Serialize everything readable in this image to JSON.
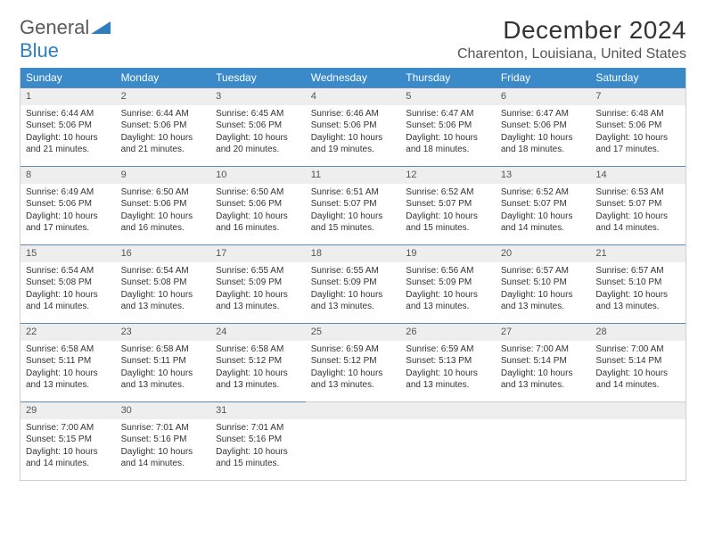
{
  "brand": {
    "part1": "General",
    "part2": "Blue"
  },
  "title": "December 2024",
  "location": "Charenton, Louisiana, United States",
  "colors": {
    "header_bg": "#3a8ac9",
    "cell_border": "#5f8bb0",
    "daynum_bg": "#eeeeee",
    "text": "#333333"
  },
  "dow": [
    "Sunday",
    "Monday",
    "Tuesday",
    "Wednesday",
    "Thursday",
    "Friday",
    "Saturday"
  ],
  "weeks": [
    [
      {
        "n": "1",
        "sunrise": "Sunrise: 6:44 AM",
        "sunset": "Sunset: 5:06 PM",
        "daylight": "Daylight: 10 hours and 21 minutes."
      },
      {
        "n": "2",
        "sunrise": "Sunrise: 6:44 AM",
        "sunset": "Sunset: 5:06 PM",
        "daylight": "Daylight: 10 hours and 21 minutes."
      },
      {
        "n": "3",
        "sunrise": "Sunrise: 6:45 AM",
        "sunset": "Sunset: 5:06 PM",
        "daylight": "Daylight: 10 hours and 20 minutes."
      },
      {
        "n": "4",
        "sunrise": "Sunrise: 6:46 AM",
        "sunset": "Sunset: 5:06 PM",
        "daylight": "Daylight: 10 hours and 19 minutes."
      },
      {
        "n": "5",
        "sunrise": "Sunrise: 6:47 AM",
        "sunset": "Sunset: 5:06 PM",
        "daylight": "Daylight: 10 hours and 18 minutes."
      },
      {
        "n": "6",
        "sunrise": "Sunrise: 6:47 AM",
        "sunset": "Sunset: 5:06 PM",
        "daylight": "Daylight: 10 hours and 18 minutes."
      },
      {
        "n": "7",
        "sunrise": "Sunrise: 6:48 AM",
        "sunset": "Sunset: 5:06 PM",
        "daylight": "Daylight: 10 hours and 17 minutes."
      }
    ],
    [
      {
        "n": "8",
        "sunrise": "Sunrise: 6:49 AM",
        "sunset": "Sunset: 5:06 PM",
        "daylight": "Daylight: 10 hours and 17 minutes."
      },
      {
        "n": "9",
        "sunrise": "Sunrise: 6:50 AM",
        "sunset": "Sunset: 5:06 PM",
        "daylight": "Daylight: 10 hours and 16 minutes."
      },
      {
        "n": "10",
        "sunrise": "Sunrise: 6:50 AM",
        "sunset": "Sunset: 5:06 PM",
        "daylight": "Daylight: 10 hours and 16 minutes."
      },
      {
        "n": "11",
        "sunrise": "Sunrise: 6:51 AM",
        "sunset": "Sunset: 5:07 PM",
        "daylight": "Daylight: 10 hours and 15 minutes."
      },
      {
        "n": "12",
        "sunrise": "Sunrise: 6:52 AM",
        "sunset": "Sunset: 5:07 PM",
        "daylight": "Daylight: 10 hours and 15 minutes."
      },
      {
        "n": "13",
        "sunrise": "Sunrise: 6:52 AM",
        "sunset": "Sunset: 5:07 PM",
        "daylight": "Daylight: 10 hours and 14 minutes."
      },
      {
        "n": "14",
        "sunrise": "Sunrise: 6:53 AM",
        "sunset": "Sunset: 5:07 PM",
        "daylight": "Daylight: 10 hours and 14 minutes."
      }
    ],
    [
      {
        "n": "15",
        "sunrise": "Sunrise: 6:54 AM",
        "sunset": "Sunset: 5:08 PM",
        "daylight": "Daylight: 10 hours and 14 minutes."
      },
      {
        "n": "16",
        "sunrise": "Sunrise: 6:54 AM",
        "sunset": "Sunset: 5:08 PM",
        "daylight": "Daylight: 10 hours and 13 minutes."
      },
      {
        "n": "17",
        "sunrise": "Sunrise: 6:55 AM",
        "sunset": "Sunset: 5:09 PM",
        "daylight": "Daylight: 10 hours and 13 minutes."
      },
      {
        "n": "18",
        "sunrise": "Sunrise: 6:55 AM",
        "sunset": "Sunset: 5:09 PM",
        "daylight": "Daylight: 10 hours and 13 minutes."
      },
      {
        "n": "19",
        "sunrise": "Sunrise: 6:56 AM",
        "sunset": "Sunset: 5:09 PM",
        "daylight": "Daylight: 10 hours and 13 minutes."
      },
      {
        "n": "20",
        "sunrise": "Sunrise: 6:57 AM",
        "sunset": "Sunset: 5:10 PM",
        "daylight": "Daylight: 10 hours and 13 minutes."
      },
      {
        "n": "21",
        "sunrise": "Sunrise: 6:57 AM",
        "sunset": "Sunset: 5:10 PM",
        "daylight": "Daylight: 10 hours and 13 minutes."
      }
    ],
    [
      {
        "n": "22",
        "sunrise": "Sunrise: 6:58 AM",
        "sunset": "Sunset: 5:11 PM",
        "daylight": "Daylight: 10 hours and 13 minutes."
      },
      {
        "n": "23",
        "sunrise": "Sunrise: 6:58 AM",
        "sunset": "Sunset: 5:11 PM",
        "daylight": "Daylight: 10 hours and 13 minutes."
      },
      {
        "n": "24",
        "sunrise": "Sunrise: 6:58 AM",
        "sunset": "Sunset: 5:12 PM",
        "daylight": "Daylight: 10 hours and 13 minutes."
      },
      {
        "n": "25",
        "sunrise": "Sunrise: 6:59 AM",
        "sunset": "Sunset: 5:12 PM",
        "daylight": "Daylight: 10 hours and 13 minutes."
      },
      {
        "n": "26",
        "sunrise": "Sunrise: 6:59 AM",
        "sunset": "Sunset: 5:13 PM",
        "daylight": "Daylight: 10 hours and 13 minutes."
      },
      {
        "n": "27",
        "sunrise": "Sunrise: 7:00 AM",
        "sunset": "Sunset: 5:14 PM",
        "daylight": "Daylight: 10 hours and 13 minutes."
      },
      {
        "n": "28",
        "sunrise": "Sunrise: 7:00 AM",
        "sunset": "Sunset: 5:14 PM",
        "daylight": "Daylight: 10 hours and 14 minutes."
      }
    ],
    [
      {
        "n": "29",
        "sunrise": "Sunrise: 7:00 AM",
        "sunset": "Sunset: 5:15 PM",
        "daylight": "Daylight: 10 hours and 14 minutes."
      },
      {
        "n": "30",
        "sunrise": "Sunrise: 7:01 AM",
        "sunset": "Sunset: 5:16 PM",
        "daylight": "Daylight: 10 hours and 14 minutes."
      },
      {
        "n": "31",
        "sunrise": "Sunrise: 7:01 AM",
        "sunset": "Sunset: 5:16 PM",
        "daylight": "Daylight: 10 hours and 15 minutes."
      },
      {
        "empty": true
      },
      {
        "empty": true
      },
      {
        "empty": true
      },
      {
        "empty": true
      }
    ]
  ]
}
